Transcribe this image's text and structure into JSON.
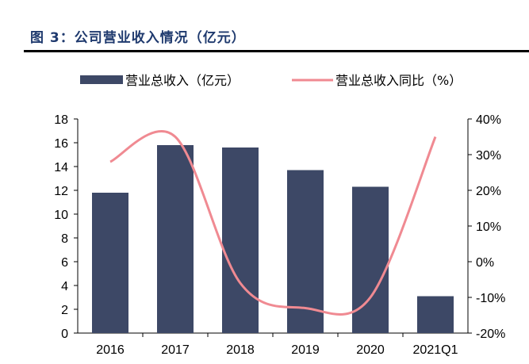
{
  "figure_title": "图 3：公司营业收入情况（亿元）",
  "colors": {
    "bar": "#3d4866",
    "line": "#f08a92",
    "title": "#1f3a6e"
  },
  "chart_data": {
    "type": "bar",
    "categories": [
      "2016",
      "2017",
      "2018",
      "2019",
      "2020",
      "2021Q1"
    ],
    "series": [
      {
        "name": "营业总收入（亿元）",
        "type": "bar",
        "axis": "left",
        "values": [
          11.8,
          15.8,
          15.6,
          13.7,
          12.3,
          3.1
        ]
      },
      {
        "name": "营业总收入同比（%）",
        "type": "line",
        "axis": "right",
        "values": [
          28,
          35,
          -6,
          -13,
          -10,
          35
        ]
      }
    ],
    "y_left": {
      "min": 0,
      "max": 18,
      "step": 2,
      "ticks": [
        "0",
        "2",
        "4",
        "6",
        "8",
        "10",
        "12",
        "14",
        "16",
        "18"
      ]
    },
    "y_right": {
      "min": -20,
      "max": 40,
      "step": 10,
      "ticks": [
        "-20%",
        "-10%",
        "0%",
        "10%",
        "20%",
        "30%",
        "40%"
      ]
    },
    "legend_position": "top",
    "grid": false
  }
}
